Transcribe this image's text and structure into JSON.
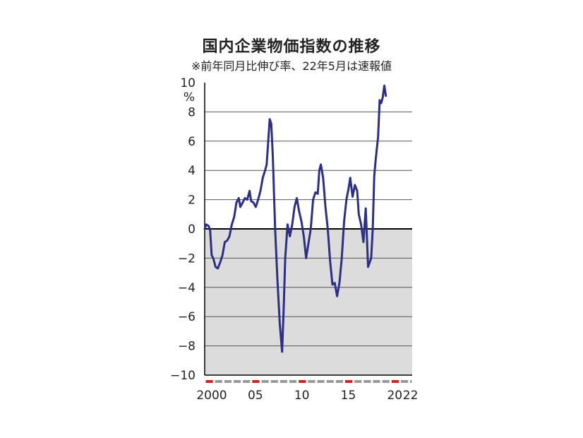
{
  "chart_data": {
    "type": "line",
    "title": "国内企業物価指数の推移",
    "subtitle": "※前年同月比伸び率、22年5月は速報値",
    "ylabel": "%",
    "ylim": [
      -10,
      10
    ],
    "yticks": [
      "10",
      "8",
      "6",
      "4",
      "2",
      "0",
      "−2",
      "−4",
      "−6",
      "−8",
      "−10"
    ],
    "xticks": [
      "2000",
      "05",
      "10",
      "15",
      "20",
      "22"
    ],
    "x_range": [
      "2000-01",
      "2022-05"
    ],
    "grid": true,
    "colors": {
      "line": "#2b2f86",
      "negative_fill": "#dcdcdc",
      "year_marker": "#d92020",
      "month_bar": "#999999"
    },
    "series": [
      {
        "points": [
          [
            "2000-01",
            0.0
          ],
          [
            "2000-03",
            0.3
          ],
          [
            "2000-06",
            0.2
          ],
          [
            "2000-08",
            -0.1
          ],
          [
            "2000-10",
            -1.8
          ],
          [
            "2000-12",
            -2.0
          ],
          [
            "2001-03",
            -2.6
          ],
          [
            "2001-06",
            -2.7
          ],
          [
            "2001-09",
            -2.3
          ],
          [
            "2001-12",
            -1.8
          ],
          [
            "2002-03",
            -0.9
          ],
          [
            "2002-06",
            -0.8
          ],
          [
            "2002-09",
            -0.5
          ],
          [
            "2002-12",
            0.3
          ],
          [
            "2003-03",
            0.8
          ],
          [
            "2003-06",
            1.8
          ],
          [
            "2003-09",
            2.1
          ],
          [
            "2003-11",
            1.5
          ],
          [
            "2004-02",
            1.8
          ],
          [
            "2004-05",
            2.1
          ],
          [
            "2004-08",
            2.0
          ],
          [
            "2004-11",
            2.6
          ],
          [
            "2005-01",
            1.9
          ],
          [
            "2005-04",
            1.8
          ],
          [
            "2005-07",
            1.5
          ],
          [
            "2005-10",
            2.0
          ],
          [
            "2006-01",
            2.6
          ],
          [
            "2006-04",
            3.5
          ],
          [
            "2006-07",
            4.0
          ],
          [
            "2006-09",
            4.4
          ],
          [
            "2007-01",
            7.5
          ],
          [
            "2007-03",
            7.2
          ],
          [
            "2007-05",
            5.0
          ],
          [
            "2007-08",
            0.0
          ],
          [
            "2007-11",
            -3.5
          ],
          [
            "2008-02",
            -6.5
          ],
          [
            "2008-05",
            -8.4
          ],
          [
            "2008-07",
            -5.5
          ],
          [
            "2008-09",
            -2.0
          ],
          [
            "2008-12",
            0.3
          ],
          [
            "2009-03",
            -0.5
          ],
          [
            "2009-06",
            0.3
          ],
          [
            "2009-09",
            1.5
          ],
          [
            "2009-12",
            2.1
          ],
          [
            "2010-03",
            1.2
          ],
          [
            "2010-06",
            0.5
          ],
          [
            "2010-09",
            -0.5
          ],
          [
            "2010-12",
            -2.0
          ],
          [
            "2011-03",
            -1.0
          ],
          [
            "2011-06",
            0.0
          ],
          [
            "2011-09",
            2.0
          ],
          [
            "2011-12",
            2.5
          ],
          [
            "2012-03",
            2.4
          ],
          [
            "2012-05",
            4.0
          ],
          [
            "2012-07",
            4.4
          ],
          [
            "2012-10",
            3.5
          ],
          [
            "2013-01",
            1.5
          ],
          [
            "2013-04",
            0.0
          ],
          [
            "2013-07",
            -2.2
          ],
          [
            "2013-10",
            -3.8
          ],
          [
            "2014-01",
            -3.7
          ],
          [
            "2014-04",
            -4.6
          ],
          [
            "2014-07",
            -3.7
          ],
          [
            "2014-10",
            -2.0
          ],
          [
            "2015-01",
            0.5
          ],
          [
            "2015-04",
            2.0
          ],
          [
            "2015-07",
            2.8
          ],
          [
            "2015-09",
            3.5
          ],
          [
            "2015-12",
            2.2
          ],
          [
            "2016-03",
            3.0
          ],
          [
            "2016-06",
            2.6
          ],
          [
            "2016-08",
            1.0
          ],
          [
            "2016-11",
            0.3
          ],
          [
            "2017-02",
            -0.9
          ],
          [
            "2017-05",
            1.4
          ],
          [
            "2017-08",
            -2.6
          ],
          [
            "2017-10",
            -2.3
          ],
          [
            "2017-12",
            -2.0
          ],
          [
            "2018-02",
            0.0
          ],
          [
            "2018-04",
            3.6
          ],
          [
            "2018-06",
            4.8
          ],
          [
            "2018-09",
            6.3
          ],
          [
            "2018-11",
            8.8
          ],
          [
            "2019-01",
            8.6
          ],
          [
            "2019-03",
            9.0
          ],
          [
            "2019-05",
            9.8
          ],
          [
            "2019-07",
            9.1
          ]
        ]
      }
    ]
  }
}
